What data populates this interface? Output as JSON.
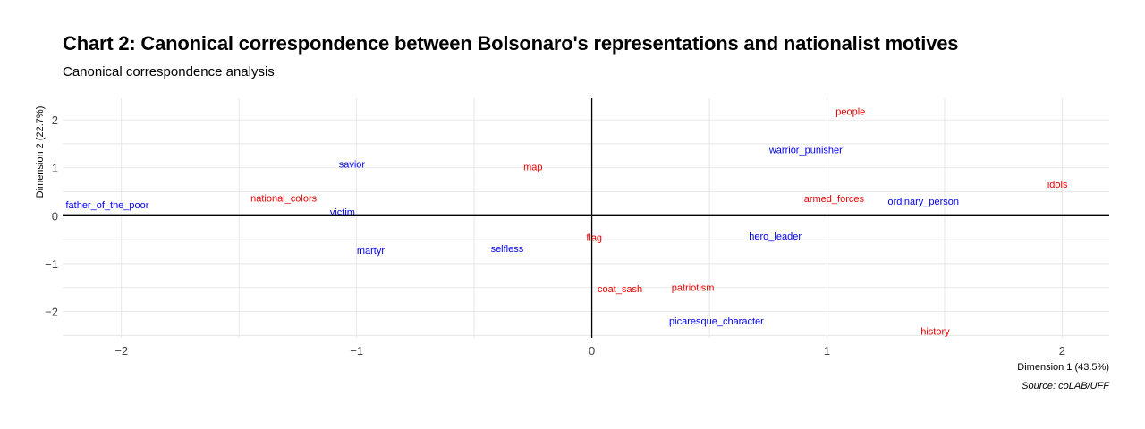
{
  "header": {
    "title": "Chart 2: Canonical correspondence between Bolsonaro's representations and nationalist motives",
    "subtitle": "Canonical correspondence analysis"
  },
  "caption": "Source: coLAB/UFF",
  "colors": {
    "representation": "#0000ee",
    "motive": "#ee0000",
    "grid": "#e2e2e2",
    "axis": "#000000"
  },
  "chart_data": {
    "type": "scatter",
    "title": "Chart 2: Canonical correspondence between Bolsonaro's representations and nationalist motives",
    "subtitle": "Canonical correspondence analysis",
    "xlabel": "Dimension 1 (43.5%)",
    "ylabel": "Dimension 2 (22.7%)",
    "xlim": [
      -2.25,
      2.2
    ],
    "ylim": [
      -2.55,
      2.45
    ],
    "xticks": [
      -2,
      -1,
      0,
      1,
      2
    ],
    "yticks": [
      -2,
      -1,
      0,
      1,
      2
    ],
    "grid": true,
    "legend": "none",
    "series": [
      {
        "color": "#0000ee",
        "points": [
          {
            "label": "father_of_the_poor",
            "x": -2.06,
            "y": 0.23
          },
          {
            "label": "savior",
            "x": -1.02,
            "y": 1.08
          },
          {
            "label": "victim",
            "x": -1.06,
            "y": 0.08
          },
          {
            "label": "martyr",
            "x": -0.94,
            "y": -0.72
          },
          {
            "label": "selfless",
            "x": -0.36,
            "y": -0.68
          },
          {
            "label": "warrior_punisher",
            "x": 0.91,
            "y": 1.38
          },
          {
            "label": "ordinary_person",
            "x": 1.41,
            "y": 0.3
          },
          {
            "label": "hero_leader",
            "x": 0.78,
            "y": -0.42
          },
          {
            "label": "picaresque_character",
            "x": 0.53,
            "y": -2.2
          }
        ]
      },
      {
        "color": "#ee0000",
        "points": [
          {
            "label": "people",
            "x": 1.1,
            "y": 2.18
          },
          {
            "label": "idols",
            "x": 1.98,
            "y": 0.66
          },
          {
            "label": "map",
            "x": -0.25,
            "y": 1.02
          },
          {
            "label": "national_colors",
            "x": -1.31,
            "y": 0.37
          },
          {
            "label": "armed_forces",
            "x": 1.03,
            "y": 0.36
          },
          {
            "label": "flag",
            "x": 0.01,
            "y": -0.45
          },
          {
            "label": "coat_sash",
            "x": 0.12,
            "y": -1.52
          },
          {
            "label": "patriotism",
            "x": 0.43,
            "y": -1.5
          },
          {
            "label": "history",
            "x": 1.46,
            "y": -2.41
          }
        ]
      }
    ]
  }
}
